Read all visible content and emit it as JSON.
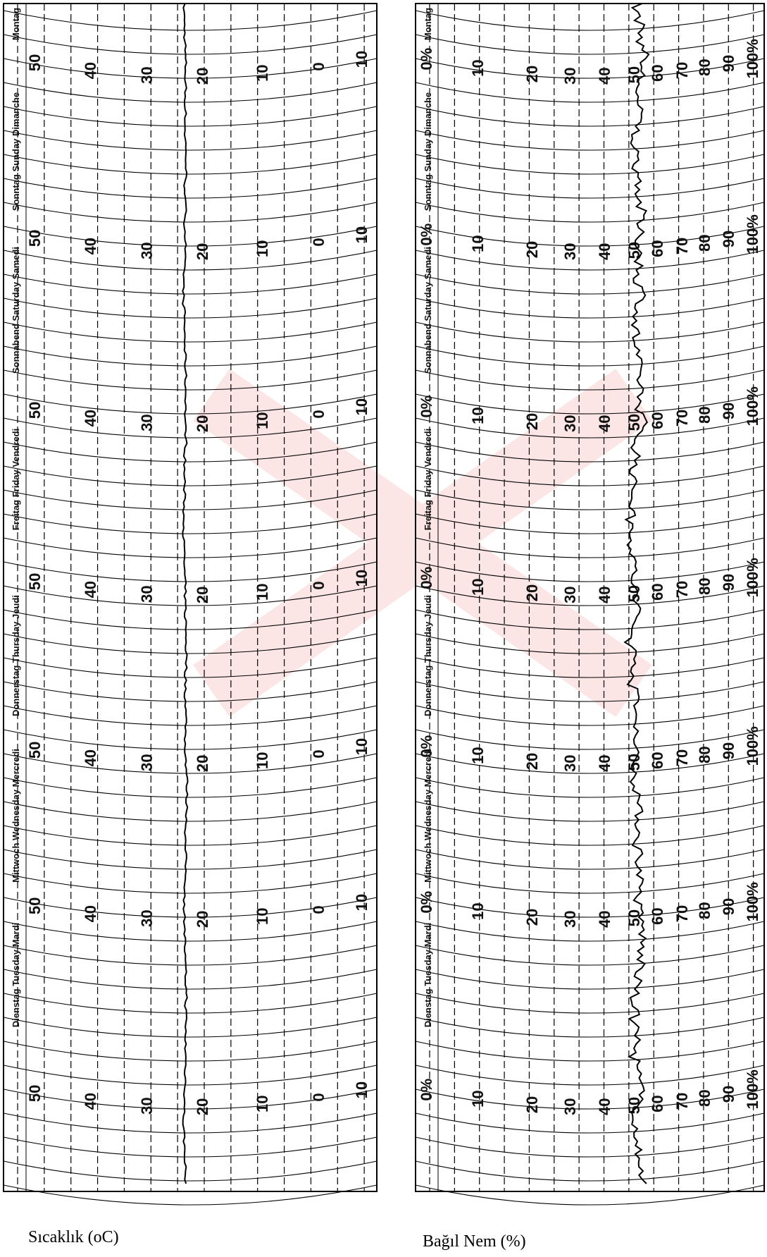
{
  "temperature_chart": {
    "caption": "Sıcaklık (oC)",
    "scale": [
      "50",
      "40",
      "30",
      "20",
      "10",
      "0",
      "10"
    ],
    "days": [
      "Montag",
      "Sonntag Sunday Dimanche",
      "Sonnabend Saturday Samedi",
      "Freitag Friday Vendredi",
      "Donnerstag Thursday Jeudi",
      "Mittwoch Wednesday Mercredi",
      "Dienstag Tuesday Mardi"
    ]
  },
  "humidity_chart": {
    "caption": "Bağıl Nem (%)",
    "scale": [
      "0%",
      "10",
      "20",
      "30",
      "40",
      "50",
      "60",
      "70",
      "80",
      "90",
      "100%"
    ],
    "days": [
      "Montag",
      "Sonntag Sunday Dimanche",
      "Sonnabend Saturday Samedi",
      "Freitag Friday Vendredi",
      "Donnerstag Thursday Jeudi",
      "Mittwoch Wednesday Mercredi",
      "Dienstag Tuesday Mardi"
    ]
  }
}
